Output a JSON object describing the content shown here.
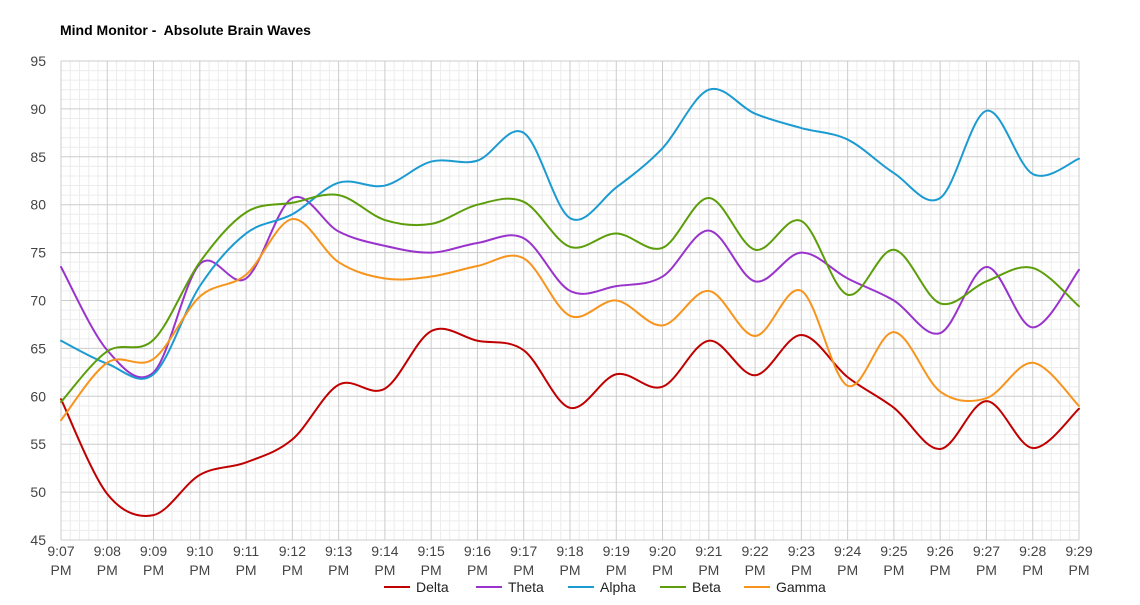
{
  "chart_data": {
    "type": "line",
    "title": "Mind Monitor -  Absolute Brain Waves",
    "xlabel": "",
    "ylabel": "",
    "ylim": [
      45,
      95
    ],
    "yticks": [
      45,
      50,
      55,
      60,
      65,
      70,
      75,
      80,
      85,
      90,
      95
    ],
    "grid": true,
    "legend_position": "bottom",
    "categories": [
      [
        "9:07",
        "PM"
      ],
      [
        "9:08",
        "PM"
      ],
      [
        "9:09",
        "PM"
      ],
      [
        "9:10",
        "PM"
      ],
      [
        "9:11",
        "PM"
      ],
      [
        "9:12",
        "PM"
      ],
      [
        "9:13",
        "PM"
      ],
      [
        "9:14",
        "PM"
      ],
      [
        "9:15",
        "PM"
      ],
      [
        "9:16",
        "PM"
      ],
      [
        "9:17",
        "PM"
      ],
      [
        "9:18",
        "PM"
      ],
      [
        "9:19",
        "PM"
      ],
      [
        "9:20",
        "PM"
      ],
      [
        "9:21",
        "PM"
      ],
      [
        "9:22",
        "PM"
      ],
      [
        "9:23",
        "PM"
      ],
      [
        "9:24",
        "PM"
      ],
      [
        "9:25",
        "PM"
      ],
      [
        "9:26",
        "PM"
      ],
      [
        "9:27",
        "PM"
      ],
      [
        "9:28",
        "PM"
      ],
      [
        "9:29",
        "PM"
      ]
    ],
    "series": [
      {
        "name": "Delta",
        "color": "#c00000",
        "values": [
          59.7,
          49.8,
          47.6,
          51.8,
          53.1,
          55.5,
          61.2,
          60.8,
          66.8,
          65.8,
          64.8,
          58.8,
          62.3,
          61.0,
          65.8,
          62.2,
          66.4,
          62.0,
          58.8,
          54.5,
          59.5,
          54.6,
          58.7
        ]
      },
      {
        "name": "Theta",
        "color": "#9933cc",
        "values": [
          73.5,
          64.8,
          62.5,
          73.8,
          72.3,
          80.7,
          77.2,
          75.7,
          75.0,
          76.0,
          76.5,
          71.0,
          71.5,
          72.5,
          77.3,
          72.0,
          75.0,
          72.3,
          70.0,
          66.6,
          73.5,
          67.2,
          73.2
        ]
      },
      {
        "name": "Alpha",
        "color": "#1b9bd1",
        "values": [
          65.8,
          63.4,
          62.3,
          71.5,
          77.0,
          79.0,
          82.3,
          82.0,
          84.5,
          84.6,
          87.5,
          78.6,
          81.8,
          85.9,
          92.0,
          89.5,
          88.0,
          86.8,
          83.3,
          80.7,
          89.8,
          83.2,
          84.8
        ]
      },
      {
        "name": "Beta",
        "color": "#5c9e0a",
        "values": [
          59.4,
          64.7,
          65.9,
          74.0,
          79.2,
          80.2,
          81.0,
          78.4,
          78.0,
          80.0,
          80.3,
          75.6,
          77.0,
          75.5,
          80.7,
          75.3,
          78.3,
          70.6,
          75.3,
          69.7,
          72.0,
          73.4,
          69.4
        ]
      },
      {
        "name": "Gamma",
        "color": "#f7941d",
        "values": [
          57.5,
          63.5,
          63.9,
          70.4,
          72.7,
          78.5,
          74.0,
          72.3,
          72.5,
          73.6,
          74.4,
          68.4,
          70.0,
          67.4,
          71.0,
          66.3,
          71.0,
          61.1,
          66.7,
          60.5,
          59.8,
          63.5,
          59.0
        ]
      }
    ]
  }
}
